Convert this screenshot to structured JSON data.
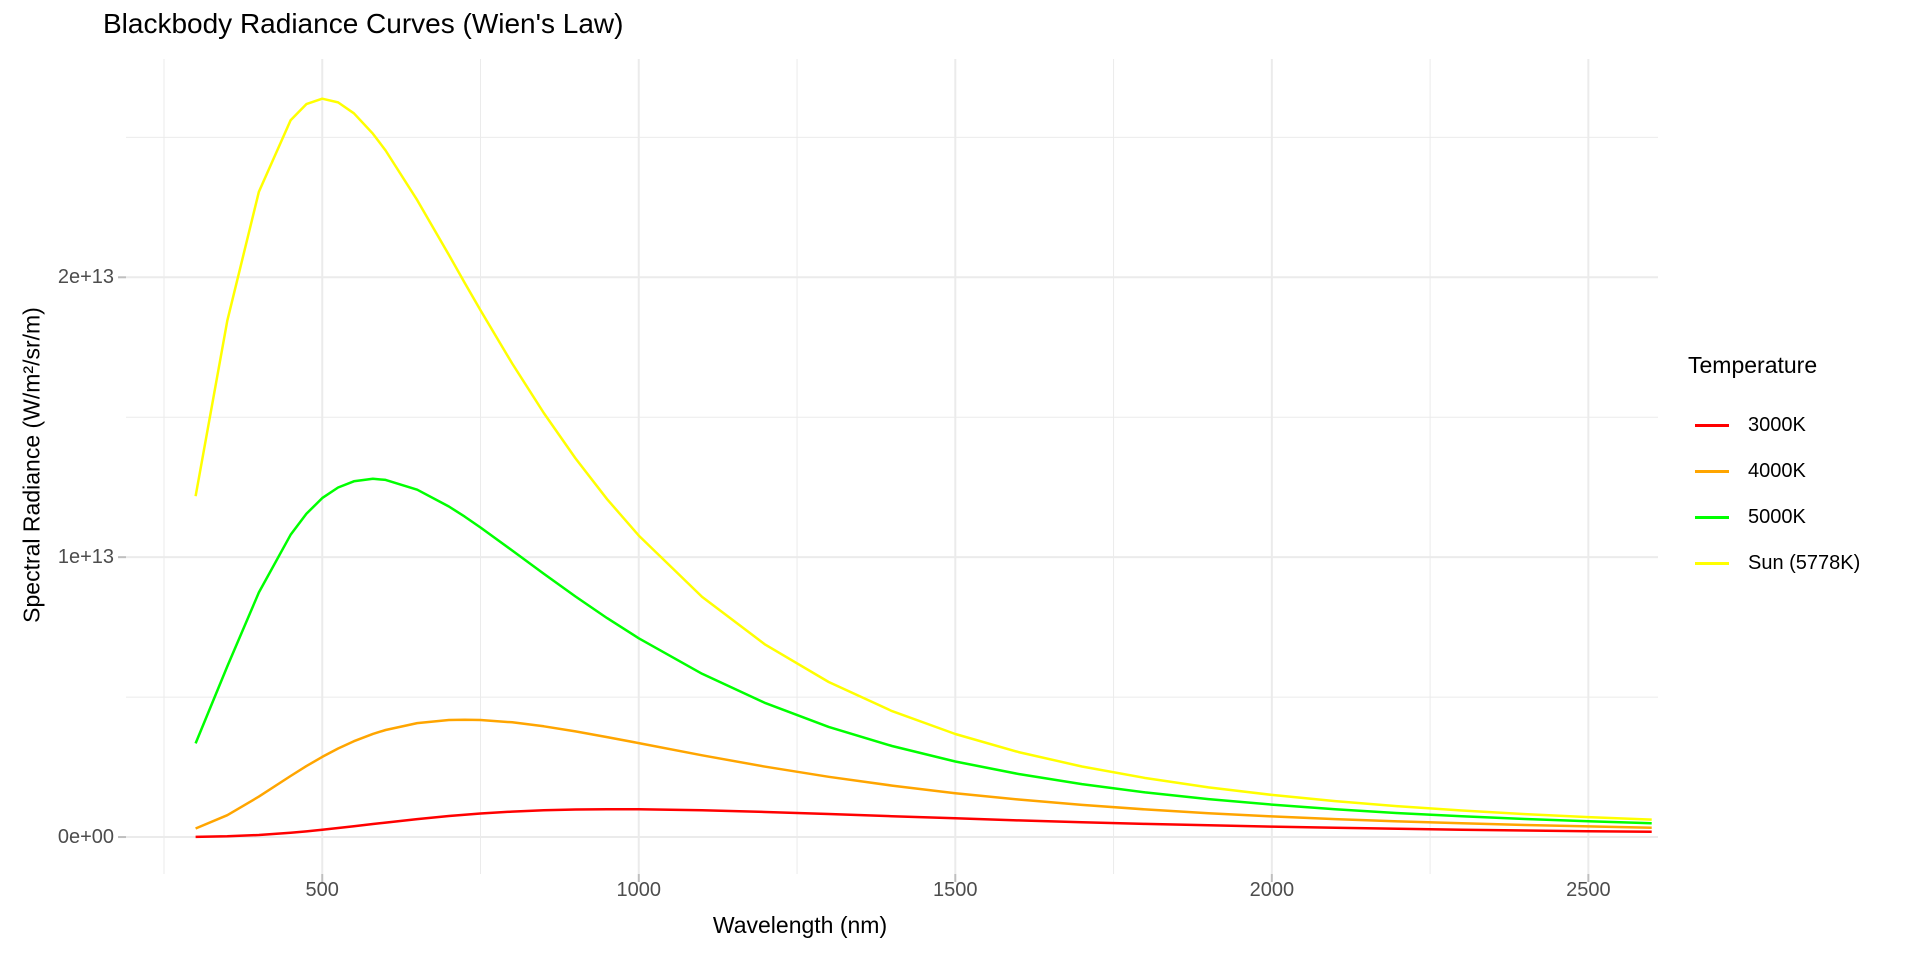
{
  "title": "Blackbody Radiance Curves (Wien's Law)",
  "chart_data": {
    "type": "line",
    "title": "Blackbody Radiance Curves (Wien's Law)",
    "xlabel": "Wavelength (nm)",
    "ylabel": "Spectral Radiance (W/m²/sr/m)",
    "legend_title": "Temperature",
    "legend_position": "right",
    "grid": true,
    "background_color": "#FFFFFF",
    "grid_color": "#EBEBEB",
    "tick_color": "#BFBFBF",
    "tick_label_color": "#4D4D4D",
    "xlim": [
      190,
      2610
    ],
    "ylim": [
      -1320000000000.0,
      27800000000000.0
    ],
    "x_ticks": {
      "values": [
        500,
        1000,
        1500,
        2000,
        2500
      ],
      "labels": [
        "500",
        "1000",
        "1500",
        "2000",
        "2500"
      ]
    },
    "y_ticks": {
      "values": [
        0,
        10000000000000.0,
        20000000000000.0
      ],
      "labels": [
        "0e+00",
        "1e+13",
        "2e+13"
      ]
    },
    "x_minor": [
      250,
      750,
      1250,
      1750,
      2250
    ],
    "y_minor": [
      5000000000000.0,
      15000000000000.0,
      25000000000000.0
    ],
    "x": [
      300,
      350,
      400,
      450,
      475,
      500,
      525,
      550,
      580,
      600,
      650,
      700,
      725,
      750,
      800,
      850,
      900,
      950,
      1000,
      1100,
      1200,
      1300,
      1400,
      1500,
      1600,
      1700,
      1800,
      1900,
      2000,
      2100,
      2200,
      2300,
      2400,
      2500,
      2600
    ],
    "series": [
      {
        "name": "3000K",
        "color": "#FF0000",
        "values": [
          5600000000.0,
          25400000000.0,
          72200000000.0,
          151800000000.0,
          203000000000.0,
          260300000000.0,
          322000000000.0,
          386500000000.0,
          465400000000.0,
          517500000000.0,
          641600000000.0,
          750600000000.0,
          797600000000.0,
          839900000000.0,
          907800000000.0,
          954900000000.0,
          983000000000.0,
          994600000000.0,
          992500000000.0,
          957200000000.0,
          896100000000.0,
          822300000000.0,
          744500000000.0,
          668400000000.0,
          596700000000.0,
          531100000000.0,
          471800000000.0,
          419000000000.0,
          372200000000.0,
          330900000000.0,
          294500000000.0,
          262600000000.0,
          234600000000.0,
          209900000000.0,
          188200000000.0
        ]
      },
      {
        "name": "4000K",
        "color": "#FFA500",
        "values": [
          304000000000.0,
          780000000000.0,
          1447000000000.0,
          2181000000000.0,
          2535000000000.0,
          2865000000000.0,
          3163000000000.0,
          3424000000000.0,
          3684000000000.0,
          3826000000000.0,
          4072000000000.0,
          4182000000000.0,
          4193000000000.0,
          4182000000000.0,
          4099000000000.0,
          3957000000000.0,
          3776000000000.0,
          3572000000000.0,
          3356000000000.0,
          2922000000000.0,
          2515000000000.0,
          2152000000000.0,
          1837000000000.0,
          1568000000000.0,
          1341000000000.0,
          1150000000000.0,
          988500000000.0,
          852900000000.0,
          738400000000.0,
          641700000000.0,
          559700000000.0,
          489900000000.0,
          430300000000.0,
          379300000000.0,
          335400000000.0
        ]
      },
      {
        "name": "5000K",
        "color": "#00FF00",
        "values": [
          3347000000000.0,
          6097000000000.0,
          8743000000000.0,
          10800000000000.0,
          11550000000000.0,
          12110000000000.0,
          12490000000000.0,
          12710000000000.0,
          12800000000000.0,
          12760000000000.0,
          12410000000000.0,
          11810000000000.0,
          11450000000000.0,
          11060000000000.0,
          10240000000000.0,
          9409000000000.0,
          8595000000000.0,
          7823000000000.0,
          7102000000000.0,
          5832000000000.0,
          4786000000000.0,
          3937000000000.0,
          3252000000000.0,
          2700000000000.0,
          2253000000000.0,
          1892000000000.0,
          1597000000000.0,
          1356000000000.0,
          1158000000000.0,
          993100000000.0,
          856300000000.0,
          742000000000.0,
          645600000000.0,
          564300000000.0,
          495100000000.0
        ]
      },
      {
        "name": "Sun (5778K)",
        "color": "#FFFF00",
        "values": [
          12180000000000.0,
          18450000000000.0,
          23060000000000.0,
          25610000000000.0,
          26190000000000.0,
          26380000000000.0,
          26250000000000.0,
          25860000000000.0,
          25130000000000.0,
          24530000000000.0,
          22760000000000.0,
          20800000000000.0,
          19800000000000.0,
          18820000000000.0,
          16920000000000.0,
          15150000000000.0,
          13530000000000.0,
          12070000000000.0,
          10770000000000.0,
          8581000000000.0,
          6873000000000.0,
          5540000000000.0,
          4500000000000.0,
          3682000000000.0,
          3036000000000.0,
          2522000000000.0,
          2109000000000.0,
          1776000000000.0,
          1505000000000.0,
          1283000000000.0,
          1100000000000.0,
          947700000000.0,
          820800000000.0,
          714300000000.0,
          624400000000.0
        ]
      }
    ]
  }
}
